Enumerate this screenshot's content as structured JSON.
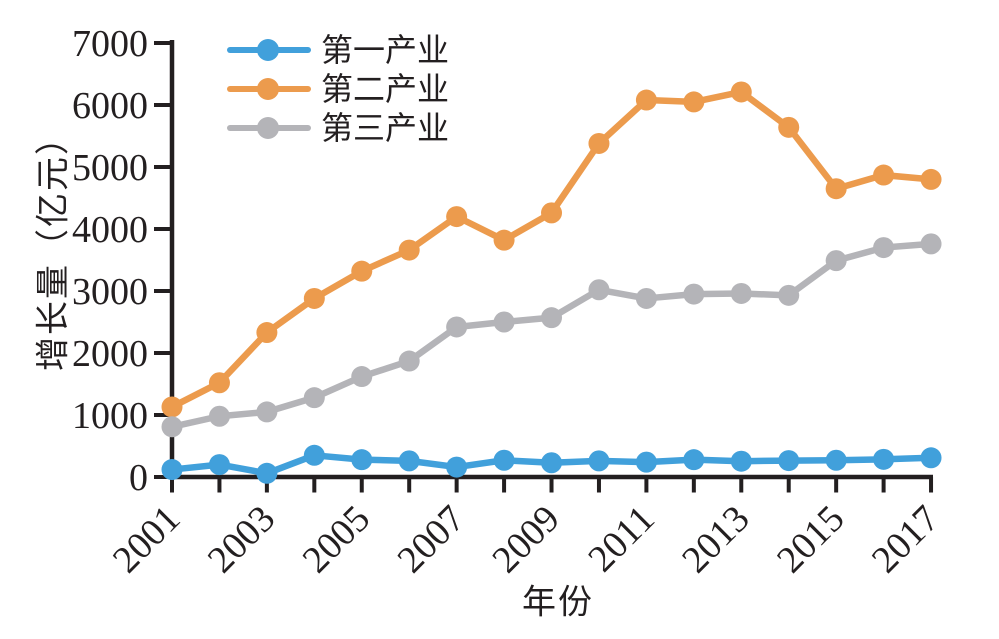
{
  "figure": {
    "background": "#ffffff",
    "axis_color": "#231f20",
    "text_color": "#231f20"
  },
  "chart_data": {
    "type": "line",
    "title": "",
    "xlabel": "年份",
    "ylabel": "增长量（亿元）",
    "x": [
      2001,
      2002,
      2003,
      2004,
      2005,
      2006,
      2007,
      2008,
      2009,
      2010,
      2011,
      2012,
      2013,
      2014,
      2015,
      2016,
      2017
    ],
    "x_labeled_ticks": [
      "2001",
      "2003",
      "2005",
      "2007",
      "2009",
      "2011",
      "2013",
      "2015",
      "2017"
    ],
    "y_ticks": [
      0,
      1000,
      2000,
      3000,
      4000,
      5000,
      6000,
      7000
    ],
    "ylim": [
      0,
      7000
    ],
    "grid": false,
    "legend_position": "top-left-inside",
    "series": [
      {
        "name": "第一产业",
        "color": "#41a0db",
        "values": [
          120,
          200,
          60,
          350,
          280,
          260,
          160,
          270,
          230,
          260,
          240,
          280,
          255,
          265,
          270,
          285,
          310
        ]
      },
      {
        "name": "第二产业",
        "color": "#ec9b4d",
        "values": [
          1130,
          1520,
          2330,
          2880,
          3320,
          3660,
          4200,
          3820,
          4260,
          5380,
          6080,
          6050,
          6210,
          5640,
          4650,
          4870,
          4800
        ]
      },
      {
        "name": "第三产业",
        "color": "#b4b4b8",
        "values": [
          810,
          980,
          1050,
          1280,
          1620,
          1870,
          2420,
          2500,
          2570,
          3020,
          2880,
          2950,
          2960,
          2930,
          3490,
          3700,
          3760
        ]
      }
    ]
  }
}
